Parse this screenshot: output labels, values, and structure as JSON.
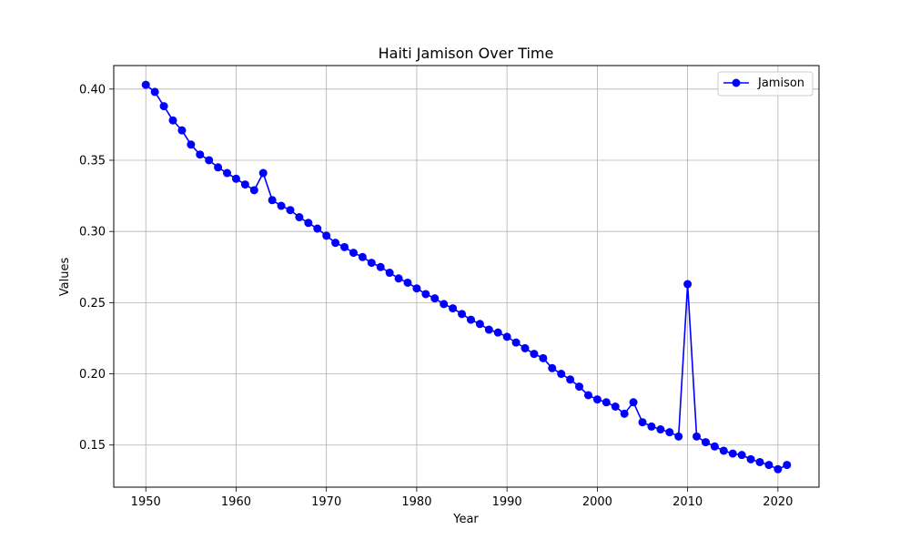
{
  "chart_data": {
    "type": "line",
    "title": "Haiti Jamison Over Time",
    "xlabel": "Year",
    "ylabel": "Values",
    "xlim": [
      1946.45,
      2024.55
    ],
    "ylim": [
      0.1204,
      0.4165
    ],
    "xticks": [
      1950,
      1960,
      1970,
      1980,
      1990,
      2000,
      2010,
      2020
    ],
    "yticks": [
      0.15,
      0.2,
      0.25,
      0.3,
      0.35,
      0.4
    ],
    "xtick_labels": [
      "1950",
      "1960",
      "1970",
      "1980",
      "1990",
      "2000",
      "2010",
      "2020"
    ],
    "ytick_labels": [
      "0.15",
      "0.20",
      "0.25",
      "0.30",
      "0.35",
      "0.40"
    ],
    "grid": true,
    "legend": {
      "placement": "top-right",
      "entries": [
        "Jamison"
      ]
    },
    "series": [
      {
        "name": "Jamison",
        "color": "#0000ff",
        "marker": "circle",
        "x": [
          1950,
          1951,
          1952,
          1953,
          1954,
          1955,
          1956,
          1957,
          1958,
          1959,
          1960,
          1961,
          1962,
          1963,
          1964,
          1965,
          1966,
          1967,
          1968,
          1969,
          1970,
          1971,
          1972,
          1973,
          1974,
          1975,
          1976,
          1977,
          1978,
          1979,
          1980,
          1981,
          1982,
          1983,
          1984,
          1985,
          1986,
          1987,
          1988,
          1989,
          1990,
          1991,
          1992,
          1993,
          1994,
          1995,
          1996,
          1997,
          1998,
          1999,
          2000,
          2001,
          2002,
          2003,
          2004,
          2005,
          2006,
          2007,
          2008,
          2009,
          2010,
          2011,
          2012,
          2013,
          2014,
          2015,
          2016,
          2017,
          2018,
          2019,
          2020,
          2021
        ],
        "values": [
          0.403,
          0.398,
          0.388,
          0.378,
          0.371,
          0.361,
          0.354,
          0.35,
          0.345,
          0.341,
          0.337,
          0.333,
          0.329,
          0.341,
          0.322,
          0.318,
          0.315,
          0.31,
          0.306,
          0.302,
          0.297,
          0.292,
          0.289,
          0.285,
          0.282,
          0.278,
          0.275,
          0.271,
          0.267,
          0.264,
          0.26,
          0.256,
          0.253,
          0.249,
          0.246,
          0.242,
          0.238,
          0.235,
          0.231,
          0.229,
          0.226,
          0.222,
          0.218,
          0.214,
          0.211,
          0.204,
          0.2,
          0.196,
          0.191,
          0.185,
          0.182,
          0.18,
          0.177,
          0.172,
          0.18,
          0.166,
          0.163,
          0.161,
          0.159,
          0.156,
          0.263,
          0.156,
          0.152,
          0.149,
          0.146,
          0.144,
          0.143,
          0.14,
          0.138,
          0.136,
          0.133,
          0.136
        ]
      }
    ]
  }
}
